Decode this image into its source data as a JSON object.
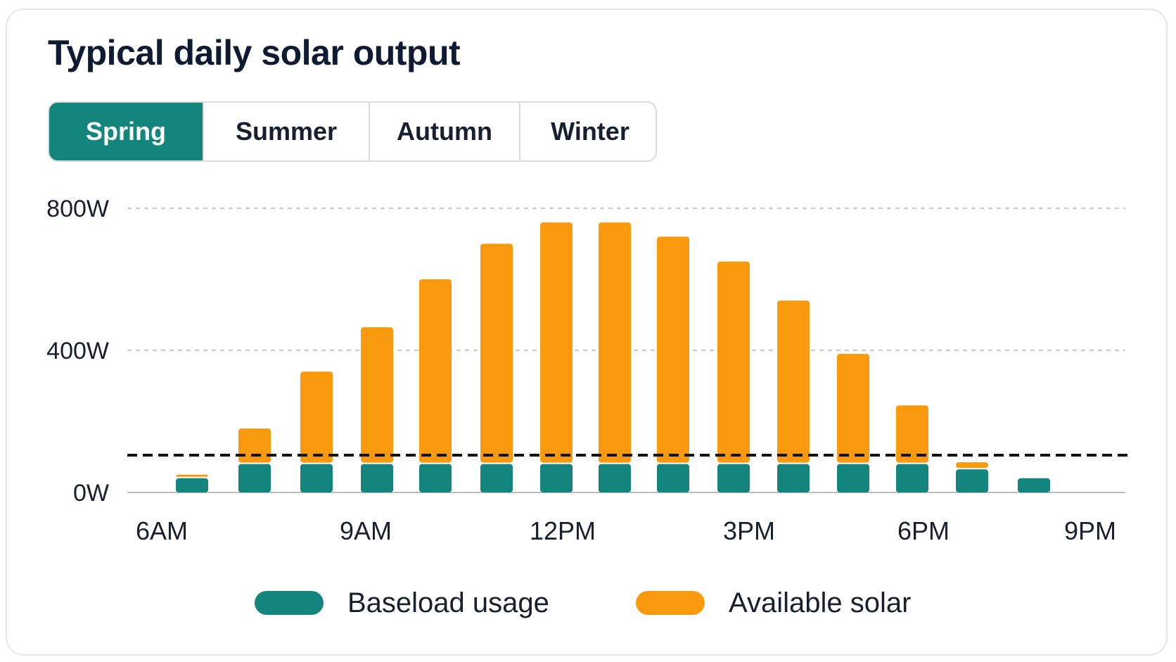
{
  "title": "Typical daily solar output",
  "tabs": [
    {
      "label": "Spring",
      "active": true
    },
    {
      "label": "Summer",
      "active": false
    },
    {
      "label": "Autumn",
      "active": false
    },
    {
      "label": "Winter",
      "active": false
    }
  ],
  "colors": {
    "accent": "#13857d",
    "baseload": "#13857d",
    "solar": "#f99a0e",
    "grid": "#c8c8c8",
    "threshold": "#111111",
    "text": "#17202e"
  },
  "legend": [
    {
      "label": "Baseload usage",
      "color": "#13857d"
    },
    {
      "label": "Available solar",
      "color": "#f99a0e"
    }
  ],
  "chart_data": {
    "type": "bar",
    "stacked": true,
    "x_ticks": [
      "6AM",
      "9AM",
      "12PM",
      "3PM",
      "6PM",
      "9PM"
    ],
    "x_hours": [
      6.5,
      7.5,
      8.5,
      9.5,
      10.5,
      11.5,
      12.5,
      13.5,
      14.5,
      15.5,
      16.5,
      17.5,
      18.5,
      19.5,
      20.5
    ],
    "xlim": [
      6,
      21
    ],
    "y_ticks": [
      "800W",
      "400W",
      "0W"
    ],
    "y_tick_values": [
      800,
      400,
      0
    ],
    "ylim": [
      0,
      800
    ],
    "grid": true,
    "series": [
      {
        "name": "Baseload usage",
        "values": [
          40,
          80,
          80,
          80,
          80,
          80,
          80,
          80,
          80,
          80,
          80,
          80,
          80,
          65,
          40
        ]
      },
      {
        "name": "Available solar",
        "values": [
          10,
          100,
          260,
          385,
          520,
          620,
          680,
          680,
          640,
          570,
          460,
          310,
          165,
          20,
          0
        ]
      }
    ],
    "threshold": 105,
    "legend_position": "bottom"
  }
}
